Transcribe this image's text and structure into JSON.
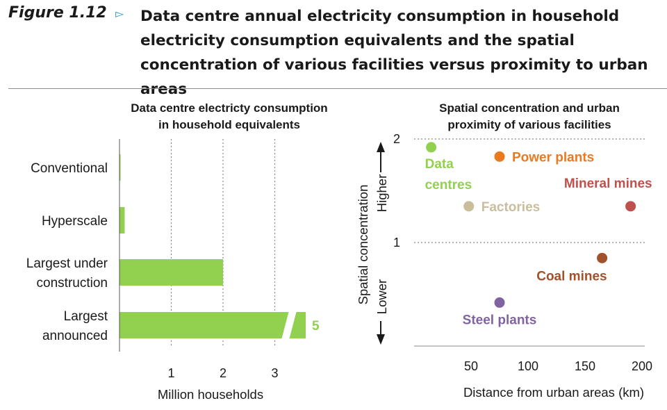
{
  "figure": {
    "label": "Figure 1.12",
    "title": "Data centre annual electricity consumption in household electricity consumption equivalents and the spatial concentration of various facilities versus proximity to urban areas",
    "accent_color": "#2a9fc7",
    "arrow_glyph": "▻"
  },
  "chart_data": [
    {
      "type": "bar",
      "orientation": "horizontal",
      "title": [
        "Data centre electricty consumption",
        "in household equivalents"
      ],
      "xlabel": "Million households",
      "ylabel": "",
      "xlim": [
        0,
        3.6
      ],
      "xticks": [
        1,
        2,
        3
      ],
      "grid": "vertical dotted",
      "bar_color": "#92d050",
      "categories": [
        {
          "lines": [
            "Conventional"
          ],
          "value": 0.02
        },
        {
          "lines": [
            "Hyperscale"
          ],
          "value": 0.1
        },
        {
          "lines": [
            "Largest under",
            "construction"
          ],
          "value": 2
        },
        {
          "lines": [
            "Largest",
            "announced"
          ],
          "value": 5,
          "axis_break": true,
          "value_label": "5"
        }
      ]
    },
    {
      "type": "scatter",
      "title": [
        "Spatial concentration and urban",
        "proximity of various facilities"
      ],
      "xlabel": "Distance from urban areas (km)",
      "ylabel": "Spatial concentration",
      "y_high_label": "Higher",
      "y_low_label": "Lower",
      "xlim": [
        0,
        210
      ],
      "ylim": [
        0,
        2
      ],
      "xticks": [
        50,
        100,
        150,
        200
      ],
      "yticks": [
        1,
        2
      ],
      "grid": "horizontal dotted at y=1 and y=2",
      "points": [
        {
          "name": "Data centres",
          "label_lines": [
            "Data",
            "centres"
          ],
          "x": 15,
          "y": 1.92,
          "color": "#92d050",
          "label_pos": "below"
        },
        {
          "name": "Power plants",
          "label_lines": [
            "Power plants"
          ],
          "x": 75,
          "y": 1.83,
          "color": "#e97a1f",
          "label_pos": "right"
        },
        {
          "name": "Mineral mines",
          "label_lines": [
            "Mineral mines"
          ],
          "x": 190,
          "y": 1.35,
          "color": "#c0504d",
          "label_pos": "above-left"
        },
        {
          "name": "Factories",
          "label_lines": [
            "Factories"
          ],
          "x": 48,
          "y": 1.35,
          "color": "#c9bd9c",
          "label_pos": "right"
        },
        {
          "name": "Coal mines",
          "label_lines": [
            "Coal mines"
          ],
          "x": 165,
          "y": 0.85,
          "color": "#a0522d",
          "label_pos": "below-left"
        },
        {
          "name": "Steel plants",
          "label_lines": [
            "Steel plants"
          ],
          "x": 75,
          "y": 0.42,
          "color": "#8064a2",
          "label_pos": "below"
        }
      ]
    }
  ]
}
